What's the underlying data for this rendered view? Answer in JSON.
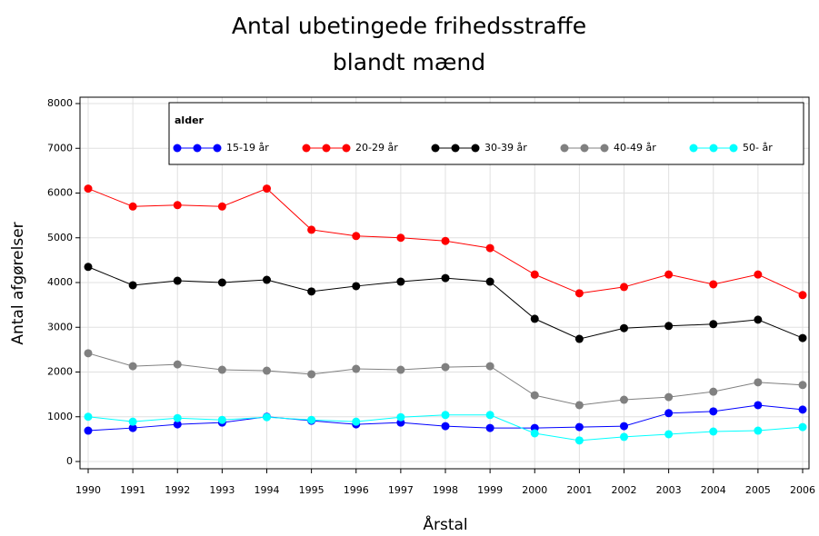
{
  "chart_data": {
    "type": "line",
    "title_lines": [
      "Antal ubetingede frihedsstraffe",
      "blandt mænd"
    ],
    "x_label": "Årstal",
    "y_label": "Antal afgørelser",
    "x": [
      1990,
      1991,
      1992,
      1993,
      1994,
      1995,
      1996,
      1997,
      1998,
      1999,
      2000,
      2001,
      2002,
      2003,
      2004,
      2005,
      2006
    ],
    "xlim": [
      1990,
      2006
    ],
    "xticks": [
      1990,
      1991,
      1992,
      1993,
      1994,
      1995,
      1996,
      1997,
      1998,
      1999,
      2000,
      2001,
      2002,
      2003,
      2004,
      2005,
      2006
    ],
    "ylim": [
      0,
      8000
    ],
    "yticks": [
      0,
      1000,
      2000,
      3000,
      4000,
      5000,
      6000,
      7000,
      8000
    ],
    "grid": true,
    "legend_title": "alder",
    "legend_position": "top",
    "series": [
      {
        "name": "15-19 år",
        "color": "#0000ff",
        "values": [
          690,
          750,
          830,
          870,
          1000,
          910,
          830,
          870,
          790,
          750,
          750,
          770,
          790,
          1080,
          1120,
          1260,
          1160
        ]
      },
      {
        "name": "20-29 år",
        "color": "#ff0000",
        "values": [
          6100,
          5700,
          5730,
          5700,
          6100,
          5180,
          5040,
          5000,
          4930,
          4770,
          4180,
          3760,
          3900,
          4180,
          3960,
          4180,
          3720
        ]
      },
      {
        "name": "30-39 år",
        "color": "#000000",
        "values": [
          4350,
          3940,
          4040,
          4000,
          4060,
          3800,
          3920,
          4020,
          4100,
          4020,
          3190,
          2740,
          2980,
          3030,
          3070,
          3170,
          2760
        ]
      },
      {
        "name": "40-49 år",
        "color": "#808080",
        "values": [
          2420,
          2130,
          2170,
          2050,
          2030,
          1950,
          2070,
          2050,
          2110,
          2130,
          1480,
          1260,
          1380,
          1440,
          1560,
          1770,
          1710
        ]
      },
      {
        "name": "50- år",
        "color": "#00ffff",
        "values": [
          1000,
          890,
          970,
          930,
          990,
          930,
          890,
          990,
          1040,
          1040,
          630,
          470,
          550,
          610,
          670,
          690,
          770
        ]
      }
    ]
  }
}
